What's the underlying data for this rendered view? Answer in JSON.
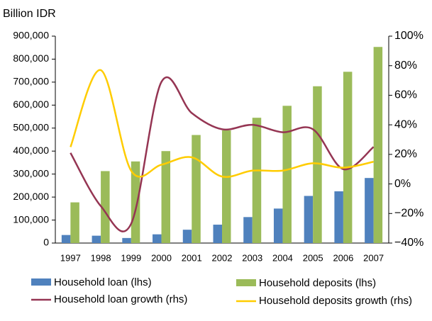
{
  "chart_data": {
    "type": "bar-line",
    "title": "Billion IDR",
    "categories": [
      "1997",
      "1998",
      "1999",
      "2000",
      "2001",
      "2002",
      "2003",
      "2004",
      "2005",
      "2006",
      "2007"
    ],
    "series": [
      {
        "name": "Household loan (lhs)",
        "type": "bar",
        "color": "#4f81bd",
        "values": [
          35000,
          32000,
          22000,
          38000,
          58000,
          80000,
          113000,
          150000,
          205000,
          225000,
          283000
        ]
      },
      {
        "name": "Household deposits (lhs)",
        "type": "bar",
        "color": "#9bbb59",
        "values": [
          177000,
          313000,
          355000,
          400000,
          470000,
          490000,
          545000,
          597000,
          682000,
          745000,
          853000
        ]
      },
      {
        "name": "Household loan growth (rhs)",
        "type": "line",
        "axis": "y2",
        "color": "#953553",
        "values": [
          21,
          -15,
          -27,
          69,
          48,
          37,
          40,
          35,
          37,
          10,
          25
        ]
      },
      {
        "name": "Household deposits growth (rhs)",
        "type": "line",
        "axis": "y2",
        "color": "#ffcc00",
        "values": [
          25,
          77,
          9,
          13,
          18,
          5,
          9,
          9,
          14,
          11,
          15
        ]
      }
    ],
    "ylim": [
      0,
      900000
    ],
    "yticks": [
      0,
      {
        "value": 100000,
        "label": "100,000"
      },
      {
        "value": 200000,
        "label": "200,000"
      },
      {
        "value": 300000,
        "label": "300,000"
      },
      {
        "value": 400000,
        "label": "400,000"
      },
      {
        "value": 500000,
        "label": "500,000"
      },
      {
        "value": 600000,
        "label": "600,000"
      },
      {
        "value": 700000,
        "label": "700,000"
      },
      {
        "value": 800000,
        "label": "800,000"
      },
      {
        "value": 900000,
        "label": "900,000"
      }
    ],
    "y2lim": [
      -40,
      100
    ],
    "y2ticks": [
      {
        "value": -40,
        "label": "−40%"
      },
      {
        "value": -20,
        "label": "−20%"
      },
      {
        "value": 0,
        "label": "0%"
      },
      {
        "value": 20,
        "label": "20%"
      },
      {
        "value": 40,
        "label": "40%"
      },
      {
        "value": 60,
        "label": "60%"
      },
      {
        "value": 80,
        "label": "80%"
      },
      {
        "value": 100,
        "label": "100%"
      }
    ]
  }
}
